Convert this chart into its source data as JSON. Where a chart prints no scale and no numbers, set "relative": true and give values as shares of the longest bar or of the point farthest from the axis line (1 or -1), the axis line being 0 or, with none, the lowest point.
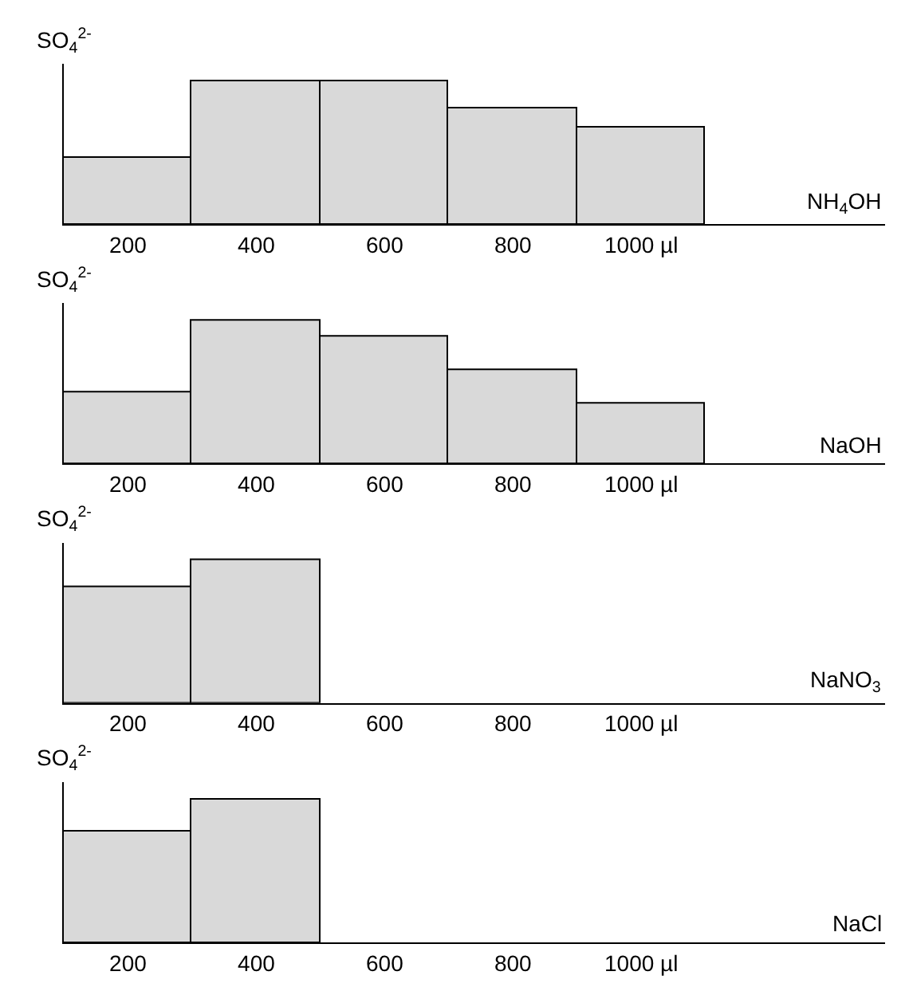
{
  "chart_data": [
    {
      "type": "bar",
      "relative": true,
      "ylabel": "SO$_{4}$$^{2-}$",
      "xlabel": "NH$_{4}$OH",
      "categories": [
        "200",
        "400",
        "600",
        "800",
        "1000 µl"
      ],
      "values": [
        0.46,
        1,
        1,
        0.81,
        0.67
      ],
      "color": "#d9d9d9"
    },
    {
      "type": "bar",
      "relative": true,
      "ylabel": "SO$_{4}$$^{2-}$",
      "xlabel": "NaOH",
      "categories": [
        "200",
        "400",
        "600",
        "800",
        "1000 µl"
      ],
      "values": [
        0.5,
        1,
        0.89,
        0.65,
        0.42
      ],
      "color": "#d9d9d9"
    },
    {
      "type": "bar",
      "relative": true,
      "ylabel": "SO$_{4}$$^{2-}$",
      "xlabel": "NaNO$_{3}$",
      "categories": [
        "200",
        "400",
        "600",
        "800",
        "1000 µl"
      ],
      "values": [
        0.81,
        1,
        null,
        null,
        null
      ],
      "color": "#d9d9d9"
    },
    {
      "type": "bar",
      "relative": true,
      "ylabel": "SO$_{4}$$^{2-}$",
      "xlabel": "NaCl",
      "categories": [
        "200",
        "400",
        "600",
        "800",
        "1000 µl"
      ],
      "values": [
        0.77,
        1,
        null,
        null,
        null
      ],
      "color": "#d9d9d9"
    }
  ]
}
